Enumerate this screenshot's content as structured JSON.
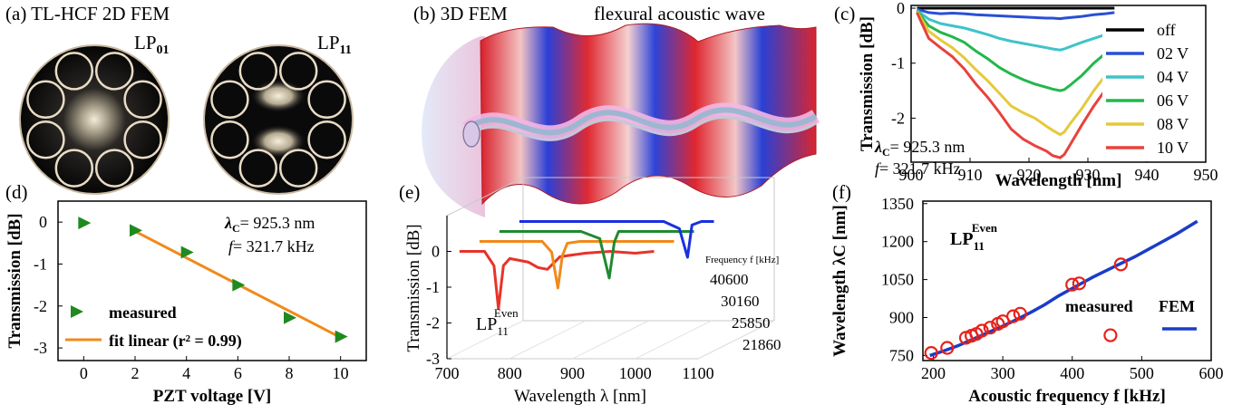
{
  "panels": {
    "a": {
      "label": "(a) TL-HCF  2D FEM",
      "mode1": "LP",
      "mode1_sub": "01",
      "mode2": "LP",
      "mode2_sub": "11"
    },
    "b": {
      "label": "(b) 3D FEM",
      "title": "flexural acoustic wave"
    },
    "c": {
      "label": "(c)",
      "lambda_text": "= 925.3 nm",
      "f_text": "= 321.7 kHz"
    },
    "d": {
      "label": "(d)",
      "lambda_text": "= 925.3 nm",
      "f_text": "= 321.7 kHz"
    },
    "e": {
      "label": "(e)",
      "mode": "LP",
      "mode_sub": "11",
      "mode_sup": "Even",
      "depth_label": "Frequency f [kHz]"
    },
    "f": {
      "label": "(f)",
      "mode": "LP",
      "mode_sub": "11",
      "mode_sup": "Even"
    }
  },
  "chart_data": [
    {
      "id": "c",
      "type": "line",
      "xlabel": "Wavelength [nm]",
      "ylabel": "Transmission [dB]",
      "xlim": [
        900,
        950
      ],
      "ylim": [
        -2.8,
        0.05
      ],
      "xticks": [
        900,
        910,
        920,
        930,
        940,
        950
      ],
      "yticks": [
        0,
        -1,
        -2
      ],
      "legend_position": "right",
      "x": [
        901,
        903,
        905,
        907,
        909,
        911,
        913,
        915,
        917,
        919,
        921,
        923,
        924,
        925.3,
        926,
        927,
        929,
        931,
        933,
        934.5
      ],
      "series": [
        {
          "name": "off",
          "color": "#000000",
          "values": [
            0,
            0,
            0,
            0,
            0,
            0,
            0,
            0,
            0,
            0,
            0,
            0,
            0,
            0,
            0,
            0,
            0,
            0,
            0,
            0
          ]
        },
        {
          "name": "02 V",
          "color": "#2a4fd6",
          "values": [
            -0.02,
            -0.08,
            -0.1,
            -0.09,
            -0.1,
            -0.12,
            -0.13,
            -0.14,
            -0.15,
            -0.16,
            -0.17,
            -0.18,
            -0.18,
            -0.19,
            -0.18,
            -0.17,
            -0.15,
            -0.12,
            -0.1,
            -0.08
          ]
        },
        {
          "name": "04 V",
          "color": "#3fc3c9",
          "values": [
            -0.04,
            -0.2,
            -0.28,
            -0.32,
            -0.36,
            -0.42,
            -0.48,
            -0.55,
            -0.6,
            -0.64,
            -0.68,
            -0.72,
            -0.74,
            -0.76,
            -0.74,
            -0.7,
            -0.62,
            -0.55,
            -0.48,
            -0.42
          ]
        },
        {
          "name": "06 V",
          "color": "#22b84a",
          "values": [
            -0.05,
            -0.32,
            -0.44,
            -0.52,
            -0.62,
            -0.78,
            -0.92,
            -1.08,
            -1.2,
            -1.3,
            -1.38,
            -1.44,
            -1.47,
            -1.5,
            -1.48,
            -1.4,
            -1.22,
            -1.0,
            -0.82,
            -0.68
          ]
        },
        {
          "name": "08 V",
          "color": "#e6c93a",
          "values": [
            -0.06,
            -0.42,
            -0.58,
            -0.72,
            -0.9,
            -1.12,
            -1.32,
            -1.55,
            -1.78,
            -1.9,
            -2.0,
            -2.15,
            -2.22,
            -2.3,
            -2.25,
            -2.1,
            -1.82,
            -1.5,
            -1.22,
            -1.05
          ]
        },
        {
          "name": "10 V",
          "color": "#e8423c",
          "values": [
            -0.08,
            -0.55,
            -0.72,
            -0.88,
            -1.1,
            -1.38,
            -1.62,
            -1.9,
            -2.2,
            -2.38,
            -2.5,
            -2.6,
            -2.68,
            -2.72,
            -2.66,
            -2.48,
            -2.12,
            -1.78,
            -1.48,
            -1.28
          ]
        }
      ],
      "annotations": [
        "λC = 925.3 nm",
        "f = 321.7 kHz"
      ]
    },
    {
      "id": "d",
      "type": "scatter",
      "xlabel": "PZT voltage [V]",
      "ylabel": "Transmission [dB]",
      "xlim": [
        -1,
        11
      ],
      "ylim": [
        -3.3,
        0.5
      ],
      "xticks": [
        0,
        2,
        4,
        6,
        8,
        10
      ],
      "yticks": [
        0,
        -1,
        -2,
        -3
      ],
      "legend_position": "bottom-left",
      "series": [
        {
          "name": "measured",
          "color": "#1f8a1f",
          "x": [
            0,
            2,
            4,
            6,
            8,
            10
          ],
          "values": [
            -0.02,
            -0.2,
            -0.72,
            -1.5,
            -2.28,
            -2.73
          ]
        },
        {
          "name": "fit linear (r² = 0.99)",
          "color": "#f08a1a",
          "x": [
            2,
            10
          ],
          "values": [
            -0.22,
            -2.75
          ]
        }
      ],
      "annotations": [
        "λC = 925.3 nm",
        "f = 321.7 kHz"
      ]
    },
    {
      "id": "e",
      "type": "line",
      "xlabel": "Wavelength λ [nm]",
      "ylabel": "Transmission [dB]",
      "xlim": [
        700,
        1100
      ],
      "ylim": [
        -3,
        1
      ],
      "xticks": [
        700,
        800,
        900,
        1000,
        1100
      ],
      "yticks": [
        0,
        -1,
        -2,
        -3
      ],
      "depth_ticks": [
        "40600",
        "30160",
        "25850",
        "21860"
      ],
      "series": [
        {
          "name": "21860",
          "color": "#e8332a",
          "x": [
            720,
            760,
            775,
            782,
            790,
            800,
            830,
            845,
            860,
            880,
            920,
            960,
            1000,
            1030
          ],
          "values": [
            0,
            0,
            -0.4,
            -1.6,
            -0.4,
            -0.2,
            -0.3,
            -0.45,
            -0.5,
            -0.15,
            -0.05,
            0,
            -0.05,
            0
          ]
        },
        {
          "name": "25850",
          "color": "#f08a1a",
          "x": [
            720,
            780,
            820,
            835,
            845,
            852,
            860,
            880,
            920,
            980,
            1030
          ],
          "values": [
            0,
            0,
            0,
            -0.3,
            -1.3,
            -0.4,
            -0.05,
            0,
            0,
            0,
            0
          ]
        },
        {
          "name": "30160",
          "color": "#1f8a2f",
          "x": [
            720,
            800,
            850,
            880,
            895,
            903,
            910,
            930,
            980,
            1030
          ],
          "values": [
            0,
            0,
            0,
            -0.2,
            -1.3,
            -0.3,
            0,
            0,
            0,
            0
          ]
        },
        {
          "name": "40600",
          "color": "#1a2fe0",
          "x": [
            720,
            800,
            900,
            950,
            975,
            988,
            995,
            1010,
            1030
          ],
          "values": [
            0,
            0,
            0,
            0,
            -0.2,
            -1.0,
            -0.1,
            0,
            0
          ]
        }
      ]
    },
    {
      "id": "f",
      "type": "scatter",
      "xlabel": "Acoustic frequency f [kHz]",
      "ylabel": "Wavelength λC [nm]",
      "xlim": [
        185,
        600
      ],
      "ylim": [
        730,
        1360
      ],
      "xticks": [
        200,
        300,
        400,
        500,
        600
      ],
      "yticks": [
        750,
        900,
        1050,
        1200,
        1350
      ],
      "legend_position": "center-right",
      "series": [
        {
          "name": "measured",
          "color": "#e8201a",
          "x": [
            197,
            220,
            247,
            255,
            262,
            270,
            282,
            293,
            300,
            315,
            325,
            400,
            410,
            455,
            470
          ],
          "values": [
            760,
            780,
            820,
            828,
            835,
            848,
            860,
            875,
            885,
            905,
            915,
            1030,
            1035,
            830,
            1110
          ]
        },
        {
          "name": "FEM",
          "color": "#1a3cc8",
          "x": [
            195,
            215,
            235,
            255,
            275,
            300,
            320,
            340,
            360,
            380,
            400,
            430,
            460,
            490,
            520,
            550,
            580
          ],
          "values": [
            750,
            768,
            788,
            812,
            836,
            866,
            892,
            920,
            950,
            985,
            1015,
            1060,
            1100,
            1140,
            1185,
            1230,
            1280
          ]
        }
      ]
    }
  ]
}
